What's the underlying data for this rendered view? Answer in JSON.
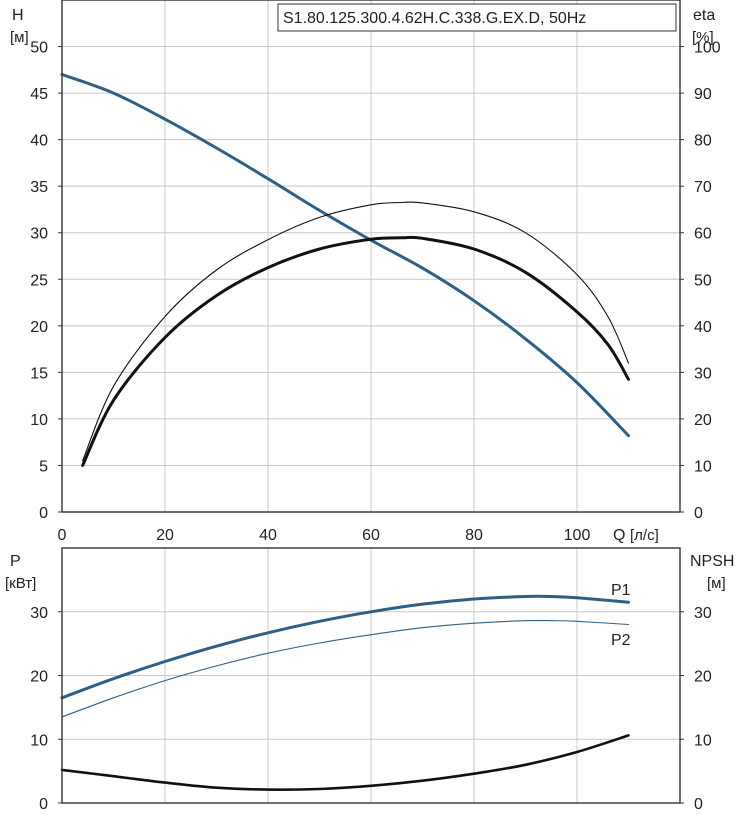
{
  "model_label": "S1.80.125.300.4.62H.C.338.G.EX.D, 50Hz",
  "colors": {
    "blue": "#2f5f86",
    "black": "#111111",
    "grid": "#c8c8c8"
  },
  "chart_data": [
    {
      "type": "line",
      "title": "S1.80.125.300.4.62H.C.338.G.EX.D, 50Hz",
      "xlabel": "Q [л/с]",
      "x_axis": {
        "label": "Q",
        "unit": "[л/с]",
        "range": [
          0,
          120
        ],
        "ticks": [
          0,
          20,
          40,
          60,
          80,
          100
        ]
      },
      "y_left": {
        "label": "H",
        "unit": "[м]",
        "range": [
          0,
          55
        ],
        "ticks": [
          0,
          5,
          10,
          15,
          20,
          25,
          30,
          35,
          40,
          45,
          50
        ]
      },
      "y_right": {
        "label": "eta",
        "unit": "[%]",
        "range": [
          0,
          110
        ],
        "ticks": [
          0,
          10,
          20,
          30,
          40,
          50,
          60,
          70,
          80,
          90,
          100
        ]
      },
      "grid": true,
      "series": [
        {
          "axis": "left",
          "color": "#2f5f86",
          "width": 3,
          "x": [
            0,
            10,
            20,
            30,
            40,
            50,
            60,
            70,
            80,
            90,
            100,
            110
          ],
          "y": [
            47,
            45,
            42.2,
            39.1,
            35.8,
            32.4,
            29.2,
            26.2,
            22.7,
            18.6,
            13.9,
            8.2
          ]
        },
        {
          "axis": "right",
          "color": "#111111",
          "width": 1.1,
          "x": [
            4,
            10,
            20,
            30,
            40,
            50,
            60,
            66,
            70,
            80,
            90,
            100,
            106,
            110
          ],
          "y": [
            11,
            27,
            42,
            52,
            58.5,
            63.3,
            66,
            66.5,
            66.4,
            64.5,
            60,
            51,
            42,
            32
          ]
        },
        {
          "axis": "right",
          "color": "#111111",
          "width": 3,
          "x": [
            4,
            10,
            20,
            30,
            40,
            50,
            60,
            66,
            70,
            80,
            90,
            100,
            106,
            110
          ],
          "y": [
            10,
            24,
            37.5,
            46.5,
            52.5,
            56.5,
            58.6,
            58.9,
            58.8,
            56.5,
            51.5,
            43,
            36,
            28.5
          ]
        }
      ]
    },
    {
      "type": "line",
      "xlabel": "",
      "x_axis": {
        "range": [
          0,
          120
        ]
      },
      "y_left": {
        "label": "P",
        "unit": "[кВт]",
        "range": [
          0,
          40
        ],
        "ticks": [
          0,
          10,
          20,
          30
        ]
      },
      "y_right": {
        "label": "NPSH",
        "unit": "[м]",
        "range": [
          0,
          40
        ],
        "ticks": [
          0,
          10,
          20,
          30
        ]
      },
      "grid": true,
      "series": [
        {
          "name": "P1",
          "axis": "left",
          "color": "#2f5f86",
          "width": 3,
          "x": [
            0,
            10,
            20,
            30,
            40,
            50,
            60,
            70,
            80,
            90,
            95,
            100,
            110
          ],
          "y": [
            16.5,
            19.5,
            22.2,
            24.6,
            26.7,
            28.5,
            30,
            31.2,
            32,
            32.4,
            32.4,
            32.2,
            31.5
          ]
        },
        {
          "name": "P2",
          "axis": "left",
          "color": "#2f5f86",
          "width": 1.1,
          "x": [
            0,
            10,
            20,
            30,
            40,
            50,
            60,
            70,
            80,
            90,
            95,
            100,
            110
          ],
          "y": [
            13.5,
            16.5,
            19.2,
            21.5,
            23.5,
            25.1,
            26.4,
            27.5,
            28.2,
            28.6,
            28.6,
            28.5,
            28
          ]
        },
        {
          "axis": "right",
          "color": "#111111",
          "width": 2.6,
          "x": [
            0,
            10,
            20,
            30,
            40,
            50,
            60,
            70,
            80,
            90,
            100,
            110
          ],
          "y": [
            5.2,
            4.2,
            3.2,
            2.4,
            2.1,
            2.2,
            2.7,
            3.5,
            4.6,
            6,
            8,
            10.6
          ]
        }
      ]
    }
  ]
}
